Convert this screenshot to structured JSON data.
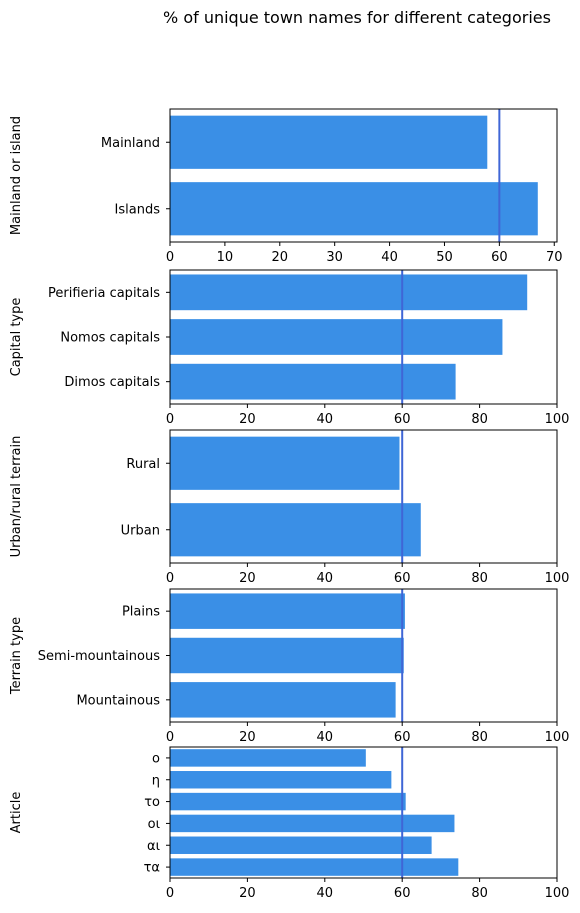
{
  "title": "% of unique town names for different categories",
  "colors": {
    "bar": "#3a8fe6",
    "reference_line": "#3f66d6",
    "axes": "#000000"
  },
  "chart_data": [
    {
      "type": "bar",
      "orientation": "horizontal",
      "ylabel": "Mainland or island",
      "categories": [
        "Mainland",
        "Islands"
      ],
      "values": [
        57.8,
        67.0
      ],
      "xlim": [
        0,
        70.5
      ],
      "xticks": [
        0,
        10,
        20,
        30,
        40,
        50,
        60,
        70
      ],
      "reference_line": 60
    },
    {
      "type": "bar",
      "orientation": "horizontal",
      "ylabel": "Capital type",
      "categories": [
        "Perifieria capitals",
        "Nomos capitals",
        "Dimos capitals"
      ],
      "values": [
        92.3,
        85.9,
        73.8
      ],
      "xlim": [
        0,
        100
      ],
      "xticks": [
        0,
        20,
        40,
        60,
        80,
        100
      ],
      "reference_line": 60
    },
    {
      "type": "bar",
      "orientation": "horizontal",
      "ylabel": "Urban/rural terrain",
      "categories": [
        "Rural",
        "Urban"
      ],
      "values": [
        59.3,
        64.8
      ],
      "xlim": [
        0,
        100
      ],
      "xticks": [
        0,
        20,
        40,
        60,
        80,
        100
      ],
      "reference_line": 60
    },
    {
      "type": "bar",
      "orientation": "horizontal",
      "ylabel": "Terrain type",
      "categories": [
        "Plains",
        "Semi-mountainous",
        "Mountainous"
      ],
      "values": [
        60.7,
        60.4,
        58.3
      ],
      "xlim": [
        0,
        100
      ],
      "xticks": [
        0,
        20,
        40,
        60,
        80,
        100
      ],
      "reference_line": 60
    },
    {
      "type": "bar",
      "orientation": "horizontal",
      "ylabel": "Article",
      "categories": [
        "ο",
        "η",
        "το",
        "οι",
        "αι",
        "τα"
      ],
      "values": [
        50.6,
        57.2,
        60.9,
        73.5,
        67.6,
        74.5
      ],
      "xlim": [
        0,
        100
      ],
      "xticks": [
        0,
        20,
        40,
        60,
        80,
        100
      ],
      "reference_line": 60
    }
  ]
}
